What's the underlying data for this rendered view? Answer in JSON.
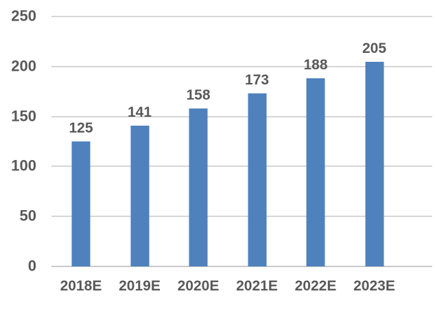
{
  "chart_data": {
    "type": "bar",
    "title": "",
    "xlabel": "",
    "ylabel": "",
    "categories": [
      "2018E",
      "2019E",
      "2020E",
      "2021E",
      "2022E",
      "2023E"
    ],
    "values": [
      125,
      141,
      158,
      173,
      188,
      205
    ],
    "ylim": [
      0,
      250
    ],
    "yticks": [
      0,
      50,
      100,
      150,
      200,
      250
    ],
    "grid": true,
    "legend": false,
    "data_labels": true,
    "colors": {
      "bar": "#4f81bd",
      "text": "#595959",
      "gridline": "#d6d6d6",
      "axis_line": "#c9c9c9",
      "background": "#ffffff"
    }
  }
}
